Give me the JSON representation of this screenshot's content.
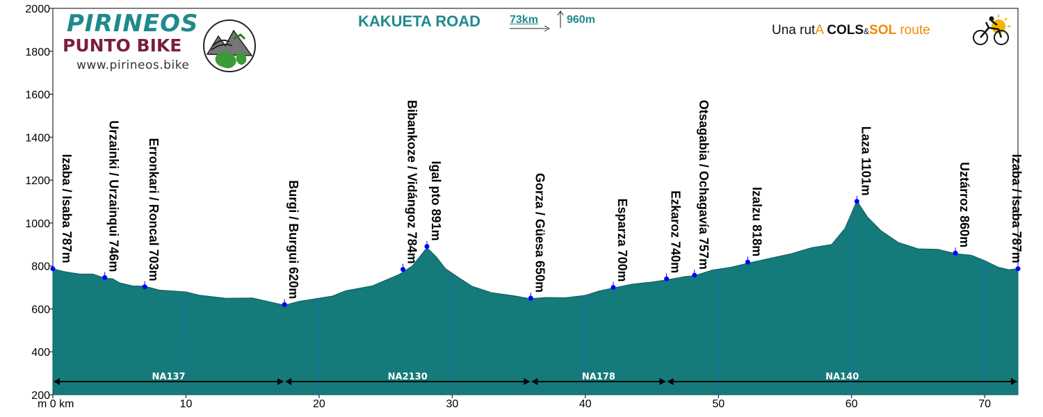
{
  "header": {
    "brand_title": "PIRINEOS",
    "brand_subtitle": "PUNTO BIKE",
    "brand_url": "www.pirineos.bike",
    "route_title": "KAKUETA ROAD",
    "distance": "73km",
    "elevation_gain": "960m",
    "tagline": {
      "p1": "Una rut",
      "p2": "A",
      "p3": "COLS",
      "p4": "&",
      "p5": "SOL",
      "p6": "route"
    }
  },
  "colors": {
    "profile_fill": "#147a7a",
    "marker": "#0000ff",
    "brand_teal": "#1f8a8c",
    "brand_maroon": "#7a1f3a",
    "accent_orange": "#f08a00"
  },
  "chart_data": {
    "type": "area",
    "xlabel": "km",
    "ylabel": "m",
    "xlim": [
      0,
      72.5
    ],
    "ylim": [
      200,
      2000
    ],
    "x_ticks": [
      0,
      10,
      20,
      30,
      40,
      50,
      60,
      70
    ],
    "x_tick_labels": [
      "m 0 km",
      "10",
      "20",
      "30",
      "40",
      "50",
      "60",
      "70"
    ],
    "y_ticks": [
      200,
      400,
      600,
      800,
      1000,
      1200,
      1400,
      1600,
      1800,
      2000
    ],
    "y_tick_labels": [
      "200",
      "400",
      "600",
      "800",
      "1000",
      "1200",
      "1400",
      "1600",
      "1800",
      "2000"
    ],
    "profile": {
      "x": [
        0,
        1,
        2,
        3,
        3.9,
        4.5,
        5,
        6,
        6.9,
        8,
        10,
        11,
        13,
        15,
        17.4,
        18.5,
        20,
        21,
        22,
        24,
        26,
        27,
        28.1,
        28.8,
        29.5,
        30.5,
        31.5,
        33,
        34.5,
        35.9,
        37,
        38.5,
        40,
        41,
        42.1,
        43.5,
        45,
        46.1,
        47.5,
        48.2,
        49.5,
        51,
        52.2,
        54,
        55.5,
        57,
        58.5,
        59.5,
        60.4,
        61.2,
        62.2,
        63.5,
        65,
        66.5,
        67.8,
        69,
        70,
        71,
        71.8,
        72.5
      ],
      "y": [
        787,
        772,
        768,
        760,
        746,
        735,
        722,
        712,
        703,
        690,
        674,
        664,
        655,
        648,
        620,
        630,
        650,
        665,
        682,
        710,
        755,
        800,
        891,
        840,
        790,
        740,
        705,
        680,
        660,
        650,
        648,
        652,
        668,
        680,
        700,
        710,
        725,
        740,
        748,
        757,
        775,
        795,
        818,
        835,
        860,
        880,
        900,
        980,
        1101,
        1030,
        960,
        910,
        885,
        875,
        860,
        845,
        825,
        800,
        780,
        787
      ]
    },
    "places": [
      {
        "x": 0,
        "y": 787,
        "label": "Izaba / Isaba 787m"
      },
      {
        "x": 3.9,
        "y": 746,
        "label": "Urzainki / Urzainqui 746m"
      },
      {
        "x": 6.9,
        "y": 703,
        "label": "Erronkari / Roncal 703m"
      },
      {
        "x": 17.4,
        "y": 620,
        "label": "Burgi / Burgui 620m"
      },
      {
        "x": 26.3,
        "y": 784,
        "label": "Bibankoze / Vidángoz 784m"
      },
      {
        "x": 28.1,
        "y": 891,
        "label": "Igal pto 891m"
      },
      {
        "x": 35.9,
        "y": 650,
        "label": "Gorza / Güesa 650m"
      },
      {
        "x": 42.1,
        "y": 700,
        "label": "Esparza 700m"
      },
      {
        "x": 46.1,
        "y": 740,
        "label": "Ezkaroz 740m"
      },
      {
        "x": 48.2,
        "y": 757,
        "label": "Otsagabia / Ochagavía 757m"
      },
      {
        "x": 52.2,
        "y": 818,
        "label": "Izalzu 818m"
      },
      {
        "x": 60.4,
        "y": 1101,
        "label": "Laza 1101m"
      },
      {
        "x": 67.8,
        "y": 860,
        "label": "Uztárroz 860m"
      },
      {
        "x": 72.5,
        "y": 787,
        "label": "Izaba / Isaba 787m"
      }
    ],
    "roads": [
      {
        "from": 0,
        "to": 17.4,
        "label": "NA137"
      },
      {
        "from": 17.4,
        "to": 35.9,
        "label": "NA2130"
      },
      {
        "from": 35.9,
        "to": 46.1,
        "label": "NA178"
      },
      {
        "from": 46.1,
        "to": 72.5,
        "label": "NA140"
      }
    ],
    "grid": false
  }
}
